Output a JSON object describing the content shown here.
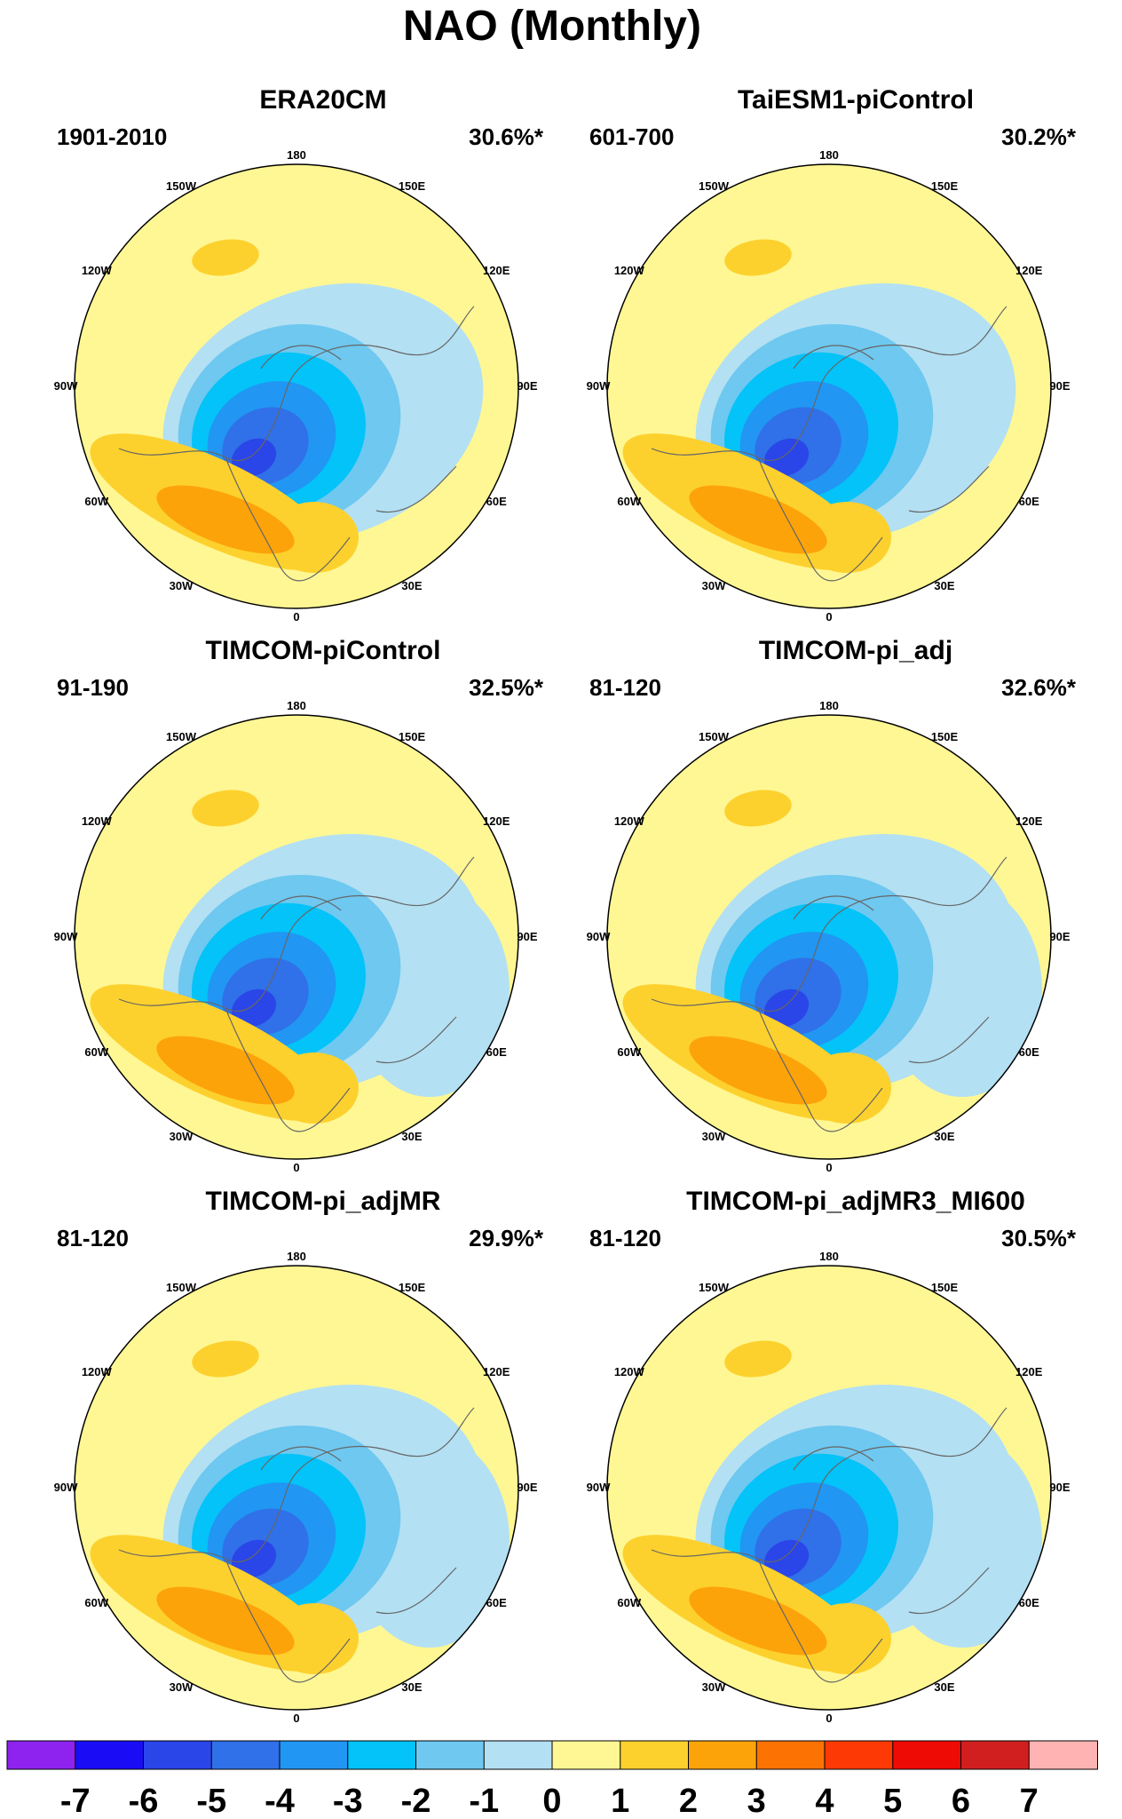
{
  "title": "NAO (Monthly)",
  "panels": [
    {
      "name": "ERA20CM",
      "period": "1901-2010",
      "variance": "30.6%*"
    },
    {
      "name": "TaiESM1-piControl",
      "period": "601-700",
      "variance": "30.2%*"
    },
    {
      "name": "TIMCOM-piControl",
      "period": "91-190",
      "variance": "32.5%*"
    },
    {
      "name": "TIMCOM-pi_adj",
      "period": "81-120",
      "variance": "32.6%*"
    },
    {
      "name": "TIMCOM-pi_adjMR",
      "period": "81-120",
      "variance": "29.9%*"
    },
    {
      "name": "TIMCOM-pi_adjMR3_MI600",
      "period": "81-120",
      "variance": "30.5%*"
    }
  ],
  "longitude_labels": [
    "180",
    "150E",
    "120E",
    "90E",
    "60E",
    "30E",
    "0",
    "30W",
    "60W",
    "90W",
    "120W",
    "150W"
  ],
  "colorbar": {
    "labels": [
      "-7",
      "-6",
      "-5",
      "-4",
      "-3",
      "-2",
      "-1",
      "0",
      "1",
      "2",
      "3",
      "4",
      "5",
      "6",
      "7"
    ],
    "colors": [
      "#8e22ee",
      "#1a0cf5",
      "#2a45e8",
      "#3070e8",
      "#2196f3",
      "#03c3f8",
      "#6ec8f0",
      "#b3e0f3",
      "#fff794",
      "#fdd12d",
      "#fda30a",
      "#fc7203",
      "#fd3a05",
      "#ee0a05",
      "#d11f1f",
      "#ffb3b3"
    ]
  }
}
